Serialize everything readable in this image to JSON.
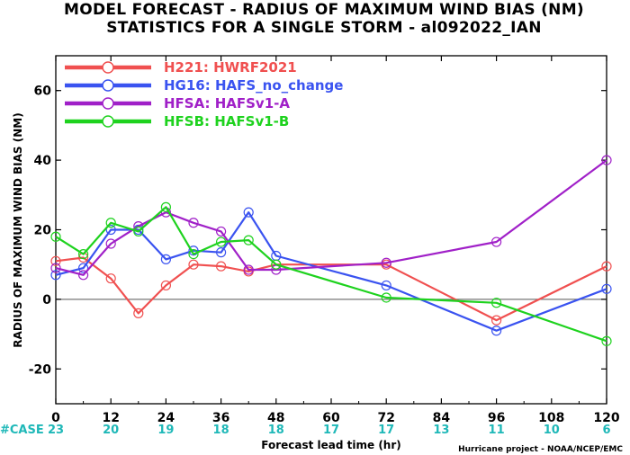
{
  "chart_data": {
    "type": "line",
    "title_line1": "MODEL FORECAST - RADIUS OF MAXIMUM WIND BIAS (NM)",
    "title_line2": "STATISTICS FOR A SINGLE STORM - al092022_IAN",
    "xlabel": "Forecast lead time (hr)",
    "ylabel": "RADIUS OF MAXIMUM WIND BIAS (NM)",
    "xlim": [
      0,
      120
    ],
    "ylim": [
      -30,
      70
    ],
    "xticks": [
      "0",
      "12",
      "24",
      "36",
      "48",
      "60",
      "72",
      "84",
      "96",
      "108",
      "120"
    ],
    "yticks": [
      "-20",
      "0",
      "20",
      "40",
      "60"
    ],
    "case_label": "#CASE",
    "case_counts": [
      "23",
      "20",
      "19",
      "18",
      "18",
      "17",
      "17",
      "13",
      "11",
      "10",
      "6"
    ],
    "credit": "Hurricane project - NOAA/NCEP/EMC",
    "zero_line": true,
    "legend_position": "top-left",
    "series": [
      {
        "key": "H221",
        "name": "H221: HWRF2021",
        "color": "#f05050",
        "x": [
          0,
          6,
          12,
          18,
          24,
          30,
          36,
          42,
          48,
          72,
          96,
          120
        ],
        "y": [
          11,
          12,
          6,
          -4,
          4,
          10,
          9.5,
          8,
          10,
          10,
          -6,
          9.5
        ]
      },
      {
        "key": "HG16",
        "name": "HG16: HAFS_no_change",
        "color": "#3a53f0",
        "x": [
          0,
          6,
          12,
          18,
          24,
          30,
          36,
          42,
          48,
          72,
          96,
          120
        ],
        "y": [
          7,
          9,
          20,
          20,
          11.5,
          14,
          13.5,
          25,
          12.5,
          4,
          -9,
          3
        ]
      },
      {
        "key": "HFSA",
        "name": "HFSA: HAFSv1-A",
        "color": "#a020c8",
        "x": [
          0,
          6,
          12,
          18,
          24,
          30,
          36,
          42,
          48,
          72,
          96,
          120
        ],
        "y": [
          9,
          7,
          16,
          21,
          25,
          22,
          19.5,
          8.5,
          8.5,
          10.5,
          16.5,
          40
        ]
      },
      {
        "key": "HFSB",
        "name": "HFSB: HAFSv1-B",
        "color": "#1ed21e",
        "x": [
          0,
          6,
          12,
          18,
          24,
          30,
          36,
          42,
          48,
          72,
          96,
          120
        ],
        "y": [
          18,
          13,
          22,
          19.5,
          26.5,
          13,
          16.5,
          17,
          10,
          0.5,
          -1,
          -12
        ]
      }
    ]
  }
}
